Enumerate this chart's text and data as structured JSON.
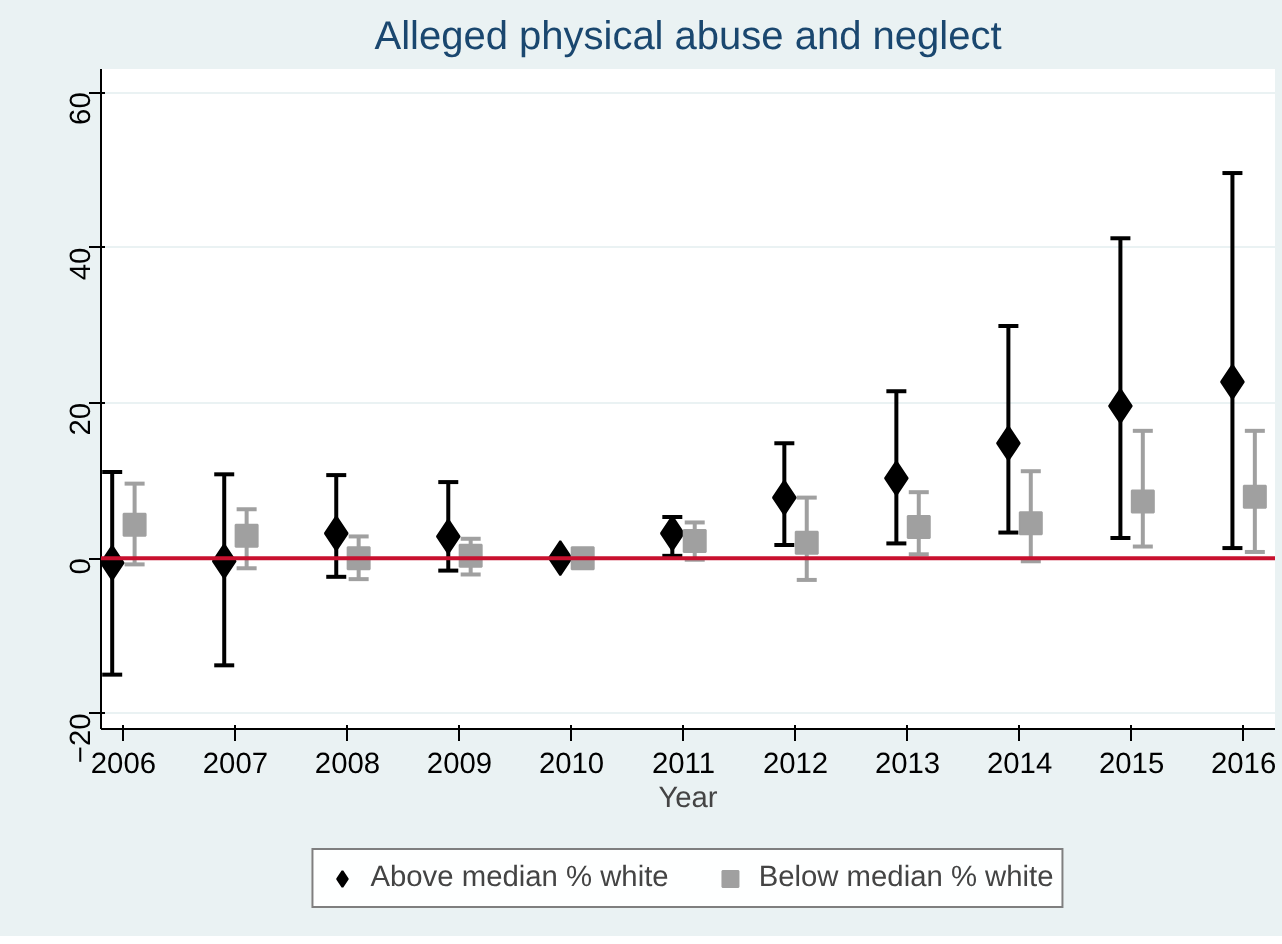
{
  "chart_data": {
    "type": "scatter",
    "title": "Alleged physical abuse and neglect",
    "xlabel": "Year",
    "xlim": [
      2005.8,
      2016.28
    ],
    "xticks": [
      2006,
      2007,
      2008,
      2009,
      2010,
      2011,
      2012,
      2013,
      2014,
      2015,
      2016
    ],
    "ylim": [
      -22,
      63
    ],
    "yticks": [
      -20,
      0,
      20,
      40,
      60
    ],
    "grid": "y",
    "legend": "bottom",
    "ref_lines": [
      {
        "axis": "y",
        "value": 0,
        "color": "#c8102e"
      }
    ],
    "series": [
      {
        "name": "Above median % white",
        "color": "#000000",
        "marker": "diamond",
        "x": [
          2005.9,
          2006.9,
          2007.9,
          2008.9,
          2009.9,
          2010.9,
          2011.9,
          2012.9,
          2013.9,
          2014.9,
          2015.9
        ],
        "values": [
          -0.6,
          -0.4,
          3.2,
          2.8,
          0,
          3.2,
          7.8,
          10.3,
          14.8,
          19.6,
          22.7
        ],
        "errors": [
          [
            -15.0,
            11.1
          ],
          [
            -13.8,
            10.8
          ],
          [
            -2.4,
            10.7
          ],
          [
            -1.6,
            9.8
          ],
          null,
          [
            0.3,
            5.3
          ],
          [
            1.7,
            14.8
          ],
          [
            1.9,
            21.5
          ],
          [
            3.3,
            29.9
          ],
          [
            2.6,
            41.2
          ],
          [
            1.3,
            49.6
          ]
        ]
      },
      {
        "name": "Below median % white",
        "color": "#a0a0a0",
        "marker": "square",
        "x": [
          2006.1,
          2007.1,
          2008.1,
          2009.1,
          2010.1,
          2011.1,
          2012.1,
          2013.1,
          2014.1,
          2015.1,
          2016.1
        ],
        "values": [
          4.3,
          2.9,
          0,
          0.3,
          0,
          2.2,
          2.0,
          4.0,
          4.5,
          7.3,
          7.9
        ],
        "errors": [
          [
            -0.8,
            9.6
          ],
          [
            -1.3,
            6.3
          ],
          [
            -2.7,
            2.8
          ],
          [
            -2.1,
            2.5
          ],
          null,
          [
            -0.2,
            4.6
          ],
          [
            -2.8,
            7.8
          ],
          [
            0.5,
            8.5
          ],
          [
            -0.4,
            11.2
          ],
          [
            1.5,
            16.4
          ],
          [
            0.8,
            16.4
          ]
        ]
      }
    ]
  }
}
